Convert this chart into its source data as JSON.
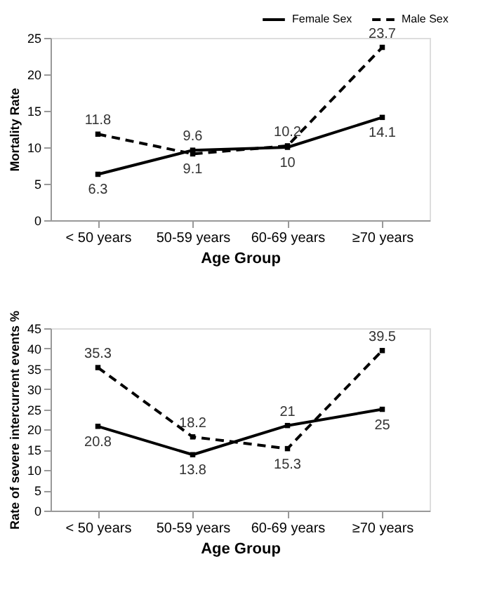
{
  "chart_data": [
    {
      "type": "line",
      "xlabel": "Age Group",
      "ylabel": "Mortality Rate",
      "categories": [
        "< 50 years",
        "50-59 years",
        "60-69 years",
        "≥70 years"
      ],
      "ylim": [
        0,
        25
      ],
      "yticks": [
        0,
        5,
        10,
        15,
        20,
        25
      ],
      "grid": false,
      "legend": "top right",
      "marker": "square",
      "data_labels": true,
      "series": [
        {
          "name": "Female Sex",
          "color": "#000000",
          "line_style": "solid",
          "values": [
            6.3,
            9.6,
            10,
            14.1
          ]
        },
        {
          "name": "Male Sex",
          "color": "#000000",
          "line_style": "dashed",
          "values": [
            11.8,
            9.1,
            10.2,
            23.7
          ]
        }
      ]
    },
    {
      "type": "line",
      "xlabel": "Age Group",
      "ylabel": "Rate of severe intercurrent events %",
      "categories": [
        "< 50 years",
        "50-59 years",
        "60-69 years",
        "≥70 years"
      ],
      "ylim": [
        0,
        45
      ],
      "yticks": [
        0,
        5,
        10,
        15,
        20,
        25,
        30,
        35,
        40,
        45
      ],
      "grid": false,
      "legend": "top right",
      "marker": "square",
      "data_labels": true,
      "series": [
        {
          "name": "Female Sex",
          "color": "#000000",
          "line_style": "solid",
          "values": [
            20.8,
            13.8,
            21,
            25
          ]
        },
        {
          "name": "Male Sex",
          "color": "#000000",
          "line_style": "dashed",
          "values": [
            35.3,
            18.2,
            15.3,
            39.5
          ]
        }
      ]
    }
  ]
}
